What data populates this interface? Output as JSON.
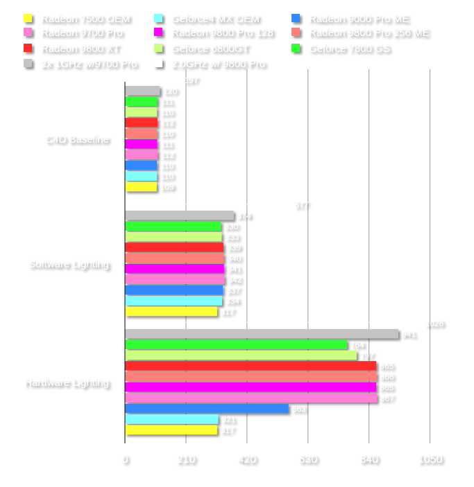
{
  "chart_data": {
    "type": "bar",
    "orientation": "horizontal",
    "title": "",
    "xlabel": "",
    "ylabel": "",
    "xlim": [
      0,
      1050
    ],
    "x_ticks": [
      "0",
      "210",
      "420",
      "630",
      "840",
      "1050"
    ],
    "grid": "vertical",
    "legend_position": "top",
    "categories": [
      "C4D Baseline",
      "Software Lighting",
      "Hardware Lighting"
    ],
    "series": [
      {
        "name": "2.0GHz w/ 9800 Pro",
        "color": "#ffffff",
        "values": [
          197,
          577,
          1026
        ]
      },
      {
        "name": "2x 1GHz w/9700 Pro",
        "color": "#c4c4c4",
        "values": [
          120,
          374,
          941
        ]
      },
      {
        "name": "Geforce 7800 GS",
        "color": "#33ff33",
        "values": [
          111,
          330,
          764
        ]
      },
      {
        "name": "Geforce 6800GT",
        "color": "#ccff80",
        "values": [
          110,
          333,
          797
        ]
      },
      {
        "name": "Radeon 9800 XT",
        "color": "#ff2a2a",
        "values": [
          112,
          339,
          865
        ]
      },
      {
        "name": "Radeon 9800 Pro 256 ME",
        "color": "#ff8078",
        "values": [
          110,
          340,
          866
        ]
      },
      {
        "name": "Radeon 9800 Pro 128",
        "color": "#ff00ff",
        "values": [
          111,
          341,
          865
        ]
      },
      {
        "name": "Radeon 9700 Pro",
        "color": "#ff80d5",
        "values": [
          112,
          342,
          867
        ]
      },
      {
        "name": "Radeon 9000 Pro ME",
        "color": "#3388ff",
        "values": [
          110,
          337,
          563
        ]
      },
      {
        "name": "Geforce4 MX OEM",
        "color": "#80ffff",
        "values": [
          110,
          334,
          321
        ]
      },
      {
        "name": "Radeon 7500 OEM",
        "color": "#ffff33",
        "values": [
          109,
          317,
          317
        ]
      }
    ],
    "legend_order": [
      "Radeon 7500 OEM",
      "Geforce4 MX OEM",
      "Radeon 9000 Pro ME",
      "Radeon 9700 Pro",
      "Radeon 9800 Pro 128",
      "Radeon 9800 Pro 256 ME",
      "Radeon 9800 XT",
      "Geforce 6800GT",
      "Geforce 7800 GS",
      "2x 1GHz w/9700 Pro",
      "2.0GHz w/ 9800 Pro"
    ]
  }
}
